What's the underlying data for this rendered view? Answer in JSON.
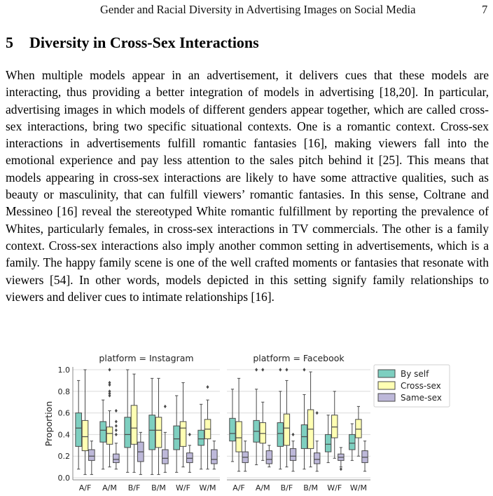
{
  "header": {
    "running_title": "Gender and Racial Diversity in Advertising Images on Social Media",
    "page_number": "7"
  },
  "section": {
    "number": "5",
    "title": "Diversity in Cross-Sex Interactions"
  },
  "paragraph": "When multiple models appear in an advertisement, it delivers cues that these models are interacting, thus providing a better integration of models in advertising [18,20]. In particular, advertising images in which models of different genders appear together, which are called cross-sex interactions, bring two specific situational contexts. One is a romantic context. Cross-sex interactions in advertisements fulfill romantic fantasies [16], making viewers fall into the emotional experience and pay less attention to the sales pitch behind it [25]. This means that models appearing in cross-sex interactions are likely to have some attractive qualities, such as beauty or masculinity, that can fulfill viewers’ romantic fantasies. In this sense, Coltrane and Messineo [16] reveal the stereotyped White romantic fulfillment by reporting the prevalence of Whites, particularly females, in cross-sex interactions in TV commercials. The other is a family context. Cross-sex interactions also imply another common setting in advertisements, which is a family. The happy family scene is one of the well crafted moments or fantasies that resonate with viewers [54]. In other words, models depicted in this setting signify family relationships to viewers and deliver cues to intimate relationships [16].",
  "chart_data": {
    "type": "boxplot",
    "ylabel": "Proportion",
    "ylim": [
      0.0,
      1.0
    ],
    "yticks": [
      "0.0",
      "0.2",
      "0.4",
      "0.6",
      "0.8",
      "1.0"
    ],
    "grid": true,
    "categories": [
      "A/F",
      "A/M",
      "B/F",
      "B/M",
      "W/F",
      "W/M"
    ],
    "legend": {
      "placement": "right",
      "entries": [
        {
          "name": "By self",
          "color": "#7ecfc0"
        },
        {
          "name": "Cross-sex",
          "color": "#ffffb3"
        },
        {
          "name": "Same-sex",
          "color": "#bdb8d9"
        }
      ]
    },
    "panels": [
      {
        "title": "platform = Instagram",
        "series": [
          {
            "name": "By self",
            "boxes": [
              {
                "lo": 0.08,
                "q1": 0.29,
                "med": 0.46,
                "q3": 0.6,
                "hi": 0.9,
                "out": []
              },
              {
                "lo": 0.08,
                "q1": 0.33,
                "med": 0.44,
                "q3": 0.52,
                "hi": 0.72,
                "out": []
              },
              {
                "lo": 0.05,
                "q1": 0.28,
                "med": 0.4,
                "q3": 0.56,
                "hi": 1.0,
                "out": []
              },
              {
                "lo": 0.03,
                "q1": 0.26,
                "med": 0.44,
                "q3": 0.58,
                "hi": 0.92,
                "out": []
              },
              {
                "lo": 0.05,
                "q1": 0.26,
                "med": 0.36,
                "q3": 0.48,
                "hi": 0.76,
                "out": []
              },
              {
                "lo": 0.08,
                "q1": 0.3,
                "med": 0.36,
                "q3": 0.44,
                "hi": 0.68,
                "out": []
              }
            ]
          },
          {
            "name": "Cross-sex",
            "boxes": [
              {
                "lo": 0.03,
                "q1": 0.25,
                "med": 0.38,
                "q3": 0.53,
                "hi": 1.0,
                "out": []
              },
              {
                "lo": 0.1,
                "q1": 0.31,
                "med": 0.41,
                "q3": 0.47,
                "hi": 0.62,
                "out": [
                  0.76,
                  0.78,
                  0.8,
                  0.86,
                  0.88,
                  1.0
                ]
              },
              {
                "lo": 0.05,
                "q1": 0.31,
                "med": 0.46,
                "q3": 0.67,
                "hi": 0.96,
                "out": []
              },
              {
                "lo": 0.03,
                "q1": 0.28,
                "med": 0.44,
                "q3": 0.56,
                "hi": 0.92,
                "out": []
              },
              {
                "lo": 0.1,
                "q1": 0.29,
                "med": 0.46,
                "q3": 0.52,
                "hi": 0.88,
                "out": []
              },
              {
                "lo": 0.08,
                "q1": 0.36,
                "med": 0.45,
                "q3": 0.54,
                "hi": 0.72,
                "out": [
                  0.84
                ]
              }
            ]
          },
          {
            "name": "Same-sex",
            "boxes": [
              {
                "lo": 0.03,
                "q1": 0.16,
                "med": 0.2,
                "q3": 0.26,
                "hi": 0.34,
                "out": []
              },
              {
                "lo": 0.08,
                "q1": 0.14,
                "med": 0.17,
                "q3": 0.22,
                "hi": 0.32,
                "out": [
                  0.4,
                  0.44,
                  0.48,
                  0.52,
                  0.62
                ]
              },
              {
                "lo": 0.03,
                "q1": 0.15,
                "med": 0.24,
                "q3": 0.33,
                "hi": 0.42,
                "out": []
              },
              {
                "lo": 0.05,
                "q1": 0.13,
                "med": 0.18,
                "q3": 0.26,
                "hi": 0.42,
                "out": [
                  0.66
                ]
              },
              {
                "lo": 0.05,
                "q1": 0.14,
                "med": 0.18,
                "q3": 0.23,
                "hi": 0.3,
                "out": [
                  0.4
                ]
              },
              {
                "lo": 0.08,
                "q1": 0.13,
                "med": 0.17,
                "q3": 0.26,
                "hi": 0.34,
                "out": []
              }
            ]
          }
        ]
      },
      {
        "title": "platform = Facebook",
        "series": [
          {
            "name": "By self",
            "boxes": [
              {
                "lo": 0.15,
                "q1": 0.34,
                "med": 0.41,
                "q3": 0.55,
                "hi": 0.82,
                "out": []
              },
              {
                "lo": 0.12,
                "q1": 0.33,
                "med": 0.43,
                "q3": 0.53,
                "hi": 0.82,
                "out": [
                  1.0
                ]
              },
              {
                "lo": 0.08,
                "q1": 0.29,
                "med": 0.41,
                "q3": 0.51,
                "hi": 0.8,
                "out": [
                  1.0
                ]
              },
              {
                "lo": 0.08,
                "q1": 0.27,
                "med": 0.38,
                "q3": 0.49,
                "hi": 0.77,
                "out": [
                  1.0
                ]
              },
              {
                "lo": 0.14,
                "q1": 0.24,
                "med": 0.31,
                "q3": 0.4,
                "hi": 0.58,
                "out": []
              },
              {
                "lo": 0.16,
                "q1": 0.26,
                "med": 0.32,
                "q3": 0.4,
                "hi": 0.5,
                "out": []
              }
            ]
          },
          {
            "name": "Cross-sex",
            "boxes": [
              {
                "lo": 0.06,
                "q1": 0.24,
                "med": 0.37,
                "q3": 0.52,
                "hi": 0.92,
                "out": []
              },
              {
                "lo": 0.16,
                "q1": 0.32,
                "med": 0.41,
                "q3": 0.51,
                "hi": 0.7,
                "out": [
                  1.0
                ]
              },
              {
                "lo": 0.1,
                "q1": 0.3,
                "med": 0.46,
                "q3": 0.59,
                "hi": 0.9,
                "out": [
                  1.0
                ]
              },
              {
                "lo": 0.1,
                "q1": 0.27,
                "med": 0.45,
                "q3": 0.63,
                "hi": 0.98,
                "out": []
              },
              {
                "lo": 0.18,
                "q1": 0.37,
                "med": 0.47,
                "q3": 0.58,
                "hi": 0.8,
                "out": []
              },
              {
                "lo": 0.2,
                "q1": 0.37,
                "med": 0.45,
                "q3": 0.54,
                "hi": 0.66,
                "out": []
              }
            ]
          },
          {
            "name": "Same-sex",
            "boxes": [
              {
                "lo": 0.06,
                "q1": 0.14,
                "med": 0.19,
                "q3": 0.24,
                "hi": 0.34,
                "out": []
              },
              {
                "lo": 0.1,
                "q1": 0.13,
                "med": 0.17,
                "q3": 0.25,
                "hi": 0.3,
                "out": []
              },
              {
                "lo": 0.06,
                "q1": 0.16,
                "med": 0.2,
                "q3": 0.27,
                "hi": 0.34,
                "out": [
                  0.4
                ]
              },
              {
                "lo": 0.06,
                "q1": 0.13,
                "med": 0.17,
                "q3": 0.23,
                "hi": 0.34,
                "out": [
                  0.6
                ]
              },
              {
                "lo": 0.1,
                "q1": 0.16,
                "med": 0.19,
                "q3": 0.22,
                "hi": 0.28,
                "out": [
                  0.08
                ]
              },
              {
                "lo": 0.06,
                "q1": 0.14,
                "med": 0.19,
                "q3": 0.25,
                "hi": 0.34,
                "out": []
              }
            ]
          }
        ]
      }
    ]
  }
}
